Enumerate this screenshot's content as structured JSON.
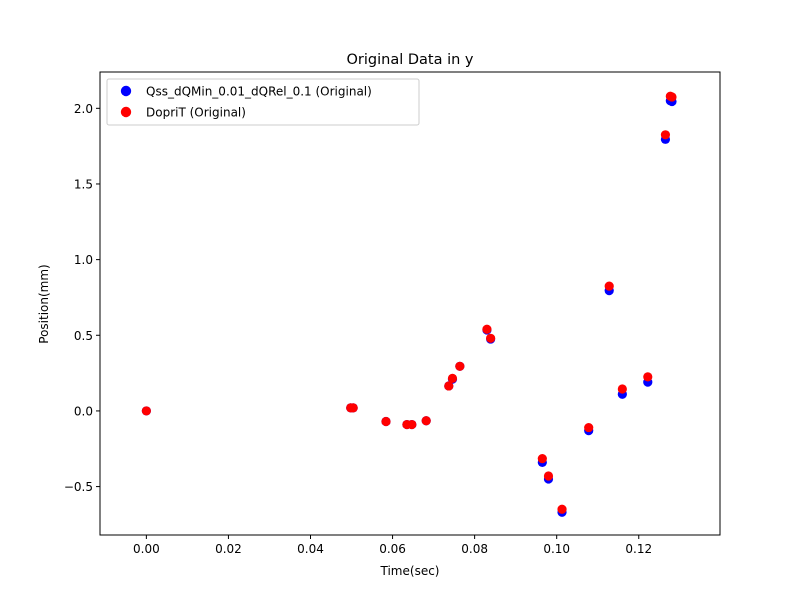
{
  "chart_data": {
    "type": "scatter",
    "title": "Original Data in y",
    "xlabel": "Time(sec)",
    "ylabel": "Position(mm)",
    "xlim": [
      -0.0113,
      0.1398
    ],
    "ylim": [
      -0.82,
      2.24
    ],
    "xticks": [
      0.0,
      0.02,
      0.04,
      0.06,
      0.08,
      0.1,
      0.12
    ],
    "xtick_labels": [
      "0.00",
      "0.02",
      "0.04",
      "0.06",
      "0.08",
      "0.10",
      "0.12"
    ],
    "yticks": [
      -0.5,
      0.0,
      0.5,
      1.0,
      1.5,
      2.0
    ],
    "ytick_labels": [
      "−0.5",
      "0.0",
      "0.5",
      "1.0",
      "1.5",
      "2.0"
    ],
    "grid": false,
    "legend_position": "upper-left",
    "series": [
      {
        "name": "Qss_dQMin_0.01_dQRel_0.1 (Original)",
        "color": "#0000ff",
        "points": [
          [
            0.0,
            0.0
          ],
          [
            0.0498,
            0.02
          ],
          [
            0.0504,
            0.02
          ],
          [
            0.0584,
            -0.07
          ],
          [
            0.0635,
            -0.09
          ],
          [
            0.0647,
            -0.09
          ],
          [
            0.0682,
            -0.065
          ],
          [
            0.0737,
            0.165
          ],
          [
            0.0746,
            0.21
          ],
          [
            0.0764,
            0.295
          ],
          [
            0.083,
            0.535
          ],
          [
            0.0839,
            0.475
          ],
          [
            0.0965,
            -0.34
          ],
          [
            0.098,
            -0.45
          ],
          [
            0.1013,
            -0.67
          ],
          [
            0.1078,
            -0.13
          ],
          [
            0.1128,
            0.795
          ],
          [
            0.116,
            0.11
          ],
          [
            0.1222,
            0.19
          ],
          [
            0.1265,
            1.795
          ],
          [
            0.1277,
            2.05
          ],
          [
            0.1281,
            2.045
          ]
        ]
      },
      {
        "name": "DopriT (Original)",
        "color": "#ff0000",
        "points": [
          [
            0.0,
            0.0
          ],
          [
            0.0498,
            0.02
          ],
          [
            0.0504,
            0.02
          ],
          [
            0.0584,
            -0.07
          ],
          [
            0.0635,
            -0.09
          ],
          [
            0.0647,
            -0.09
          ],
          [
            0.0682,
            -0.065
          ],
          [
            0.0737,
            0.165
          ],
          [
            0.0746,
            0.215
          ],
          [
            0.0764,
            0.295
          ],
          [
            0.083,
            0.54
          ],
          [
            0.0839,
            0.48
          ],
          [
            0.0965,
            -0.315
          ],
          [
            0.098,
            -0.43
          ],
          [
            0.1013,
            -0.65
          ],
          [
            0.1078,
            -0.11
          ],
          [
            0.1128,
            0.825
          ],
          [
            0.116,
            0.145
          ],
          [
            0.1222,
            0.225
          ],
          [
            0.1265,
            1.825
          ],
          [
            0.1277,
            2.08
          ],
          [
            0.1281,
            2.075
          ]
        ]
      }
    ]
  }
}
